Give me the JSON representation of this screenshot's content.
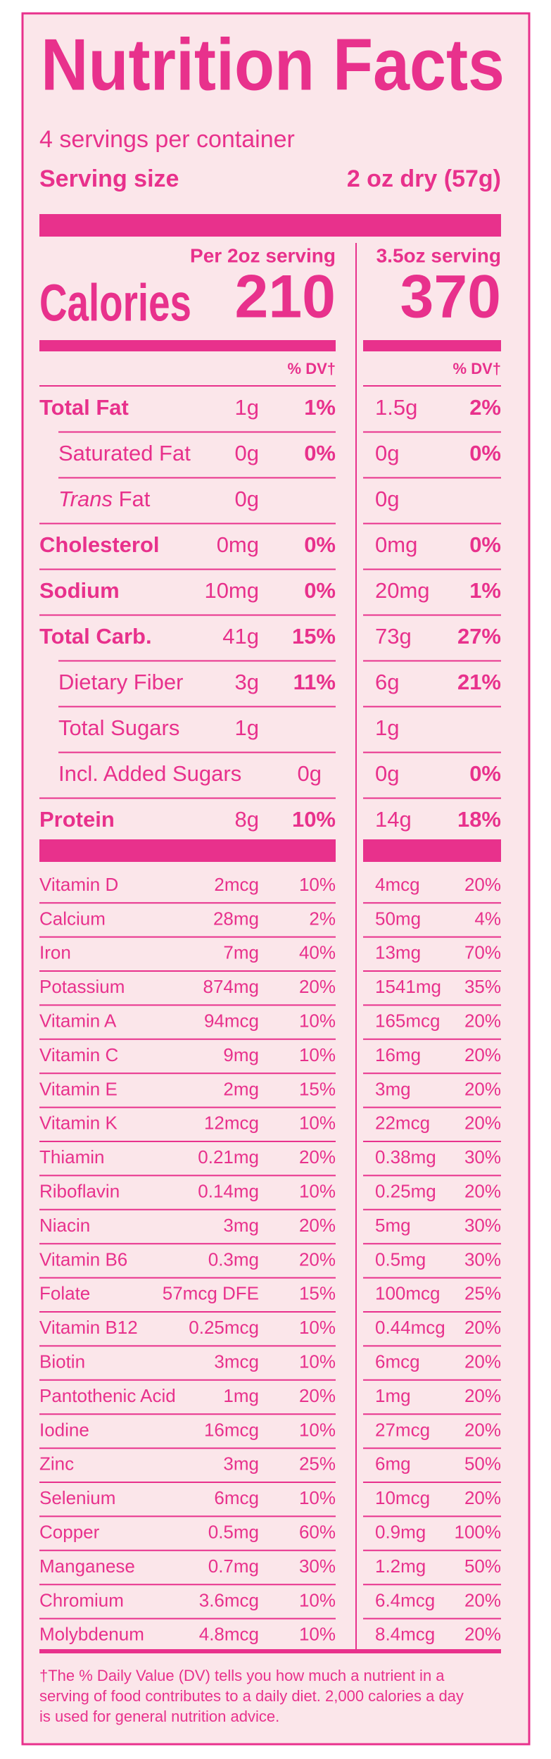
{
  "header": {
    "title": "Nutrition Facts",
    "servings": "4 servings per container",
    "serving_size_label": "Serving size",
    "serving_size_value": "2 oz dry (57g)"
  },
  "columns": {
    "col1_heading": "Per 2oz serving",
    "col2_heading": "3.5oz serving"
  },
  "calories": {
    "label": "Calories",
    "col1": "210",
    "col2": "370"
  },
  "dv_heading": {
    "col1": "% DV†",
    "col2": "% DV†"
  },
  "nutrients": [
    {
      "name": "Total Fat",
      "bold": true,
      "col1": {
        "amount": "1g",
        "dv": "1%"
      },
      "col2": {
        "amount": "1.5g",
        "dv": "2%"
      }
    },
    {
      "name": "Saturated Fat",
      "indent": true,
      "col1": {
        "amount": "0g",
        "dv": "0%"
      },
      "col2": {
        "amount": "0g",
        "dv": "0%"
      }
    },
    {
      "name_italic": "Trans",
      "name": "Fat",
      "indent": true,
      "col1": {
        "amount": "0g"
      },
      "col2": {
        "amount": "0g"
      }
    },
    {
      "name": "Cholesterol",
      "bold": true,
      "col1": {
        "amount": "0mg",
        "dv": "0%"
      },
      "col2": {
        "amount": "0mg",
        "dv": "0%"
      }
    },
    {
      "name": "Sodium",
      "bold": true,
      "col1": {
        "amount": "10mg",
        "dv": "0%"
      },
      "col2": {
        "amount": "20mg",
        "dv": "1%"
      }
    },
    {
      "name": "Total Carb.",
      "bold": true,
      "col1": {
        "amount": "41g",
        "dv": "15%"
      },
      "col2": {
        "amount": "73g",
        "dv": "27%"
      }
    },
    {
      "name": "Dietary Fiber",
      "indent": true,
      "col1": {
        "amount": "3g",
        "dv": "11%"
      },
      "col2": {
        "amount": "6g",
        "dv": "21%"
      }
    },
    {
      "name": "Total Sugars",
      "indent": true,
      "col1": {
        "amount": "1g"
      },
      "col2": {
        "amount": "1g"
      }
    },
    {
      "name": "Incl. Added Sugars",
      "indent": true,
      "col1": {
        "amount": "0g"
      },
      "col2": {
        "amount": "0g",
        "dv": "0%"
      }
    },
    {
      "name": "Protein",
      "bold": true,
      "col1": {
        "amount": "8g",
        "dv": "10%"
      },
      "col2": {
        "amount": "14g",
        "dv": "18%"
      }
    }
  ],
  "vitamins": [
    [
      "Vitamin D",
      "2mcg",
      "10%",
      "4mcg",
      "20%"
    ],
    [
      "Calcium",
      "28mg",
      "2%",
      "50mg",
      "4%"
    ],
    [
      "Iron",
      "7mg",
      "40%",
      "13mg",
      "70%"
    ],
    [
      "Potassium",
      "874mg",
      "20%",
      "1541mg",
      "35%"
    ],
    [
      "Vitamin A",
      "94mcg",
      "10%",
      "165mcg",
      "20%"
    ],
    [
      "Vitamin C",
      "9mg",
      "10%",
      "16mg",
      "20%"
    ],
    [
      "Vitamin E",
      "2mg",
      "15%",
      "3mg",
      "20%"
    ],
    [
      "Vitamin K",
      "12mcg",
      "10%",
      "22mcg",
      "20%"
    ],
    [
      "Thiamin",
      "0.21mg",
      "20%",
      "0.38mg",
      "30%"
    ],
    [
      "Riboflavin",
      "0.14mg",
      "10%",
      "0.25mg",
      "20%"
    ],
    [
      "Niacin",
      "3mg",
      "20%",
      "5mg",
      "30%"
    ],
    [
      "Vitamin B6",
      "0.3mg",
      "20%",
      "0.5mg",
      "30%"
    ],
    [
      "Folate",
      "57mcg DFE",
      "15%",
      "100mcg",
      "25%"
    ],
    [
      "Vitamin B12",
      "0.25mcg",
      "10%",
      "0.44mcg",
      "20%"
    ],
    [
      "Biotin",
      "3mcg",
      "10%",
      "6mcg",
      "20%"
    ],
    [
      "Pantothenic Acid",
      "1mg",
      "20%",
      "1mg",
      "20%"
    ],
    [
      "Iodine",
      "16mcg",
      "10%",
      "27mcg",
      "20%"
    ],
    [
      "Zinc",
      "3mg",
      "25%",
      "6mg",
      "50%"
    ],
    [
      "Selenium",
      "6mcg",
      "10%",
      "10mcg",
      "20%"
    ],
    [
      "Copper",
      "0.5mg",
      "60%",
      "0.9mg",
      "100%"
    ],
    [
      "Manganese",
      "0.7mg",
      "30%",
      "1.2mg",
      "50%"
    ],
    [
      "Chromium",
      "3.6mcg",
      "10%",
      "6.4mcg",
      "20%"
    ],
    [
      "Molybdenum",
      "4.8mcg",
      "10%",
      "8.4mcg",
      "20%"
    ]
  ],
  "footnote": [
    "†The % Daily Value (DV) tells you how much a nutrient in a",
    "serving of  food contributes to a daily diet. 2,000 calories a day",
    "is used for general nutrition advice."
  ]
}
